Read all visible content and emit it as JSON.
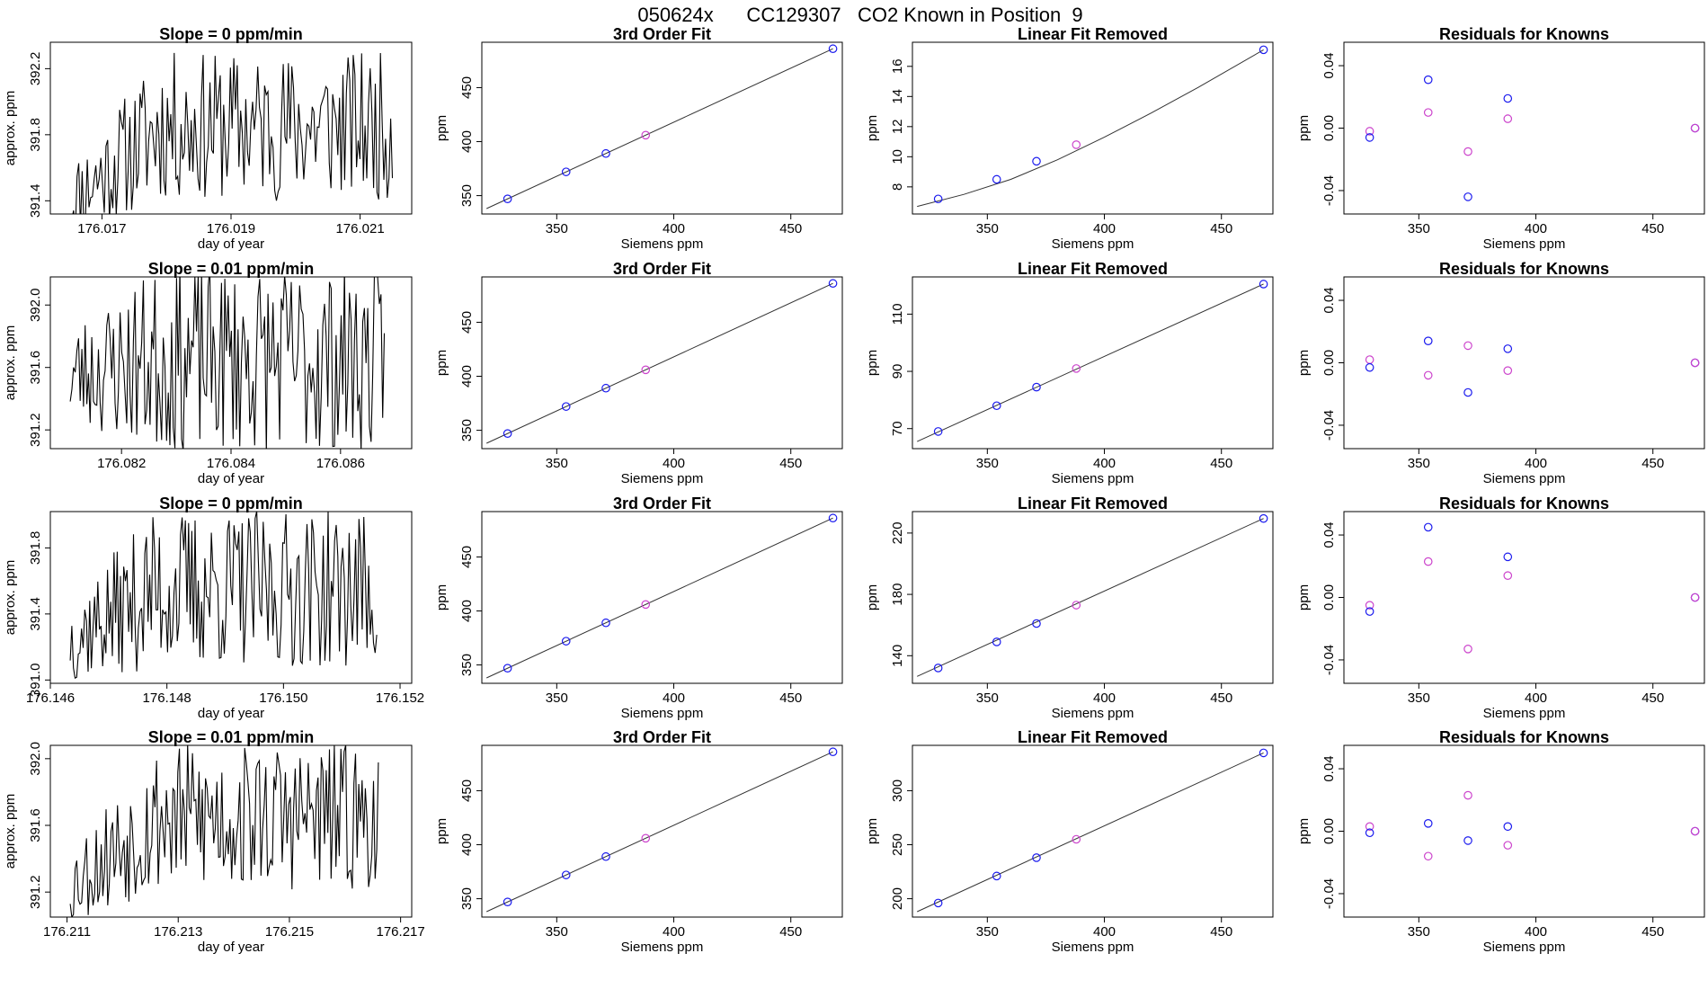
{
  "page_title": "050624x      CC129307   CO2 Known in Position  9",
  "colors": {
    "axis": "#000000",
    "trace": "#000000",
    "point_blue": "#1a1aee",
    "point_magenta": "#cc44cc",
    "fit_line": "#333333"
  },
  "chart_data": [
    {
      "row": 1,
      "col": 1,
      "type": "line",
      "title": "Slope =  0  ppm/min",
      "xlabel": "day of year",
      "ylabel": "approx. ppm",
      "xlim": [
        176.0162,
        176.0218
      ],
      "ylim": [
        391.32,
        392.36
      ],
      "xticks": [
        176.017,
        176.019,
        176.021
      ],
      "xtick_labels": [
        "176.017",
        "176.019",
        "176.021"
      ],
      "yticks": [
        391.4,
        391.8,
        392.2
      ],
      "ytick_labels": [
        "391.4",
        "391.8",
        "392.2"
      ],
      "seed": 11,
      "noise_center": 391.85,
      "noise_spread": 0.45,
      "ramp": 0.45,
      "x_end": 176.0215
    },
    {
      "row": 1,
      "col": 2,
      "type": "scatter",
      "title": "3rd Order Fit",
      "xlabel": "Siemens ppm",
      "ylabel": "ppm",
      "xlim": [
        318,
        472
      ],
      "ylim": [
        333,
        492
      ],
      "xticks": [
        350,
        400,
        450
      ],
      "yticks": [
        350,
        400,
        450
      ],
      "fit_line": [
        [
          320,
          338
        ],
        [
          468,
          486
        ]
      ],
      "points": [
        {
          "x": 329,
          "y": 347,
          "c": "blue"
        },
        {
          "x": 354,
          "y": 372,
          "c": "blue"
        },
        {
          "x": 371,
          "y": 389,
          "c": "blue"
        },
        {
          "x": 388,
          "y": 406,
          "c": "magenta"
        },
        {
          "x": 468,
          "y": 486,
          "c": "blue"
        }
      ]
    },
    {
      "row": 1,
      "col": 3,
      "type": "scatter",
      "title": "Linear Fit Removed",
      "xlabel": "Siemens ppm",
      "ylabel": "ppm",
      "xlim": [
        318,
        472
      ],
      "ylim": [
        6.2,
        17.6
      ],
      "xticks": [
        350,
        400,
        450
      ],
      "yticks": [
        8,
        10,
        12,
        14,
        16
      ],
      "fit_curve": [
        [
          320,
          6.7
        ],
        [
          340,
          7.5
        ],
        [
          360,
          8.5
        ],
        [
          380,
          9.8
        ],
        [
          400,
          11.3
        ],
        [
          420,
          12.9
        ],
        [
          440,
          14.6
        ],
        [
          468,
          17.1
        ]
      ],
      "points": [
        {
          "x": 329,
          "y": 7.2,
          "c": "blue"
        },
        {
          "x": 354,
          "y": 8.5,
          "c": "blue"
        },
        {
          "x": 371,
          "y": 9.7,
          "c": "blue"
        },
        {
          "x": 388,
          "y": 10.8,
          "c": "magenta"
        },
        {
          "x": 468,
          "y": 17.1,
          "c": "blue"
        }
      ]
    },
    {
      "row": 1,
      "col": 4,
      "type": "scatter",
      "title": "Residuals for Knowns",
      "xlabel": "Siemens ppm",
      "ylabel": "ppm",
      "xlim": [
        318,
        472
      ],
      "ylim": [
        -0.055,
        0.055
      ],
      "xticks": [
        350,
        400,
        450
      ],
      "yticks": [
        -0.04,
        0,
        0.04
      ],
      "ytick_labels": [
        "-0.04",
        "0.00",
        "0.04"
      ],
      "points": [
        {
          "x": 329,
          "y": -0.002,
          "c": "magenta"
        },
        {
          "x": 329,
          "y": -0.006,
          "c": "blue"
        },
        {
          "x": 354,
          "y": 0.031,
          "c": "blue"
        },
        {
          "x": 354,
          "y": 0.01,
          "c": "magenta"
        },
        {
          "x": 371,
          "y": -0.015,
          "c": "magenta"
        },
        {
          "x": 371,
          "y": -0.044,
          "c": "blue"
        },
        {
          "x": 388,
          "y": 0.019,
          "c": "blue"
        },
        {
          "x": 388,
          "y": 0.006,
          "c": "magenta"
        },
        {
          "x": 468,
          "y": 0.0,
          "c": "blue"
        },
        {
          "x": 468,
          "y": 0.0,
          "c": "magenta"
        }
      ]
    },
    {
      "row": 2,
      "col": 1,
      "type": "line",
      "title": "Slope =  0.01  ppm/min",
      "xlabel": "day of year",
      "ylabel": "approx. ppm",
      "xlim": [
        176.0807,
        176.0873
      ],
      "ylim": [
        391.08,
        392.18
      ],
      "xticks": [
        176.082,
        176.084,
        176.086
      ],
      "xtick_labels": [
        "176.082",
        "176.084",
        "176.086"
      ],
      "yticks": [
        391.2,
        391.6,
        392.0
      ],
      "ytick_labels": [
        "391.2",
        "391.6",
        "392.0"
      ],
      "seed": 23,
      "noise_center": 391.65,
      "noise_spread": 0.6,
      "ramp": 0.1,
      "x_end": 176.0868
    },
    {
      "row": 2,
      "col": 2,
      "type": "scatter",
      "title": "3rd Order Fit",
      "xlabel": "Siemens ppm",
      "ylabel": "ppm",
      "xlim": [
        318,
        472
      ],
      "ylim": [
        333,
        492
      ],
      "xticks": [
        350,
        400,
        450
      ],
      "yticks": [
        350,
        400,
        450
      ],
      "fit_line": [
        [
          320,
          338
        ],
        [
          468,
          486
        ]
      ],
      "points": [
        {
          "x": 329,
          "y": 347,
          "c": "blue"
        },
        {
          "x": 354,
          "y": 372,
          "c": "blue"
        },
        {
          "x": 371,
          "y": 389,
          "c": "blue"
        },
        {
          "x": 388,
          "y": 406,
          "c": "magenta"
        },
        {
          "x": 468,
          "y": 486,
          "c": "blue"
        }
      ]
    },
    {
      "row": 2,
      "col": 3,
      "type": "scatter",
      "title": "Linear Fit Removed",
      "xlabel": "Siemens ppm",
      "ylabel": "ppm",
      "xlim": [
        318,
        472
      ],
      "ylim": [
        63,
        123
      ],
      "xticks": [
        350,
        400,
        450
      ],
      "yticks": [
        70,
        90,
        110
      ],
      "fit_line": [
        [
          320,
          65.5
        ],
        [
          468,
          120.5
        ]
      ],
      "points": [
        {
          "x": 329,
          "y": 69,
          "c": "blue"
        },
        {
          "x": 354,
          "y": 78,
          "c": "blue"
        },
        {
          "x": 371,
          "y": 84.5,
          "c": "blue"
        },
        {
          "x": 388,
          "y": 91,
          "c": "magenta"
        },
        {
          "x": 468,
          "y": 120.5,
          "c": "blue"
        }
      ]
    },
    {
      "row": 2,
      "col": 4,
      "type": "scatter",
      "title": "Residuals for Knowns",
      "xlabel": "Siemens ppm",
      "ylabel": "ppm",
      "xlim": [
        318,
        472
      ],
      "ylim": [
        -0.055,
        0.055
      ],
      "xticks": [
        350,
        400,
        450
      ],
      "yticks": [
        -0.04,
        0,
        0.04
      ],
      "ytick_labels": [
        "-0.04",
        "0.00",
        "0.04"
      ],
      "points": [
        {
          "x": 329,
          "y": 0.002,
          "c": "magenta"
        },
        {
          "x": 329,
          "y": -0.003,
          "c": "blue"
        },
        {
          "x": 354,
          "y": 0.014,
          "c": "blue"
        },
        {
          "x": 354,
          "y": -0.008,
          "c": "magenta"
        },
        {
          "x": 371,
          "y": 0.011,
          "c": "magenta"
        },
        {
          "x": 371,
          "y": -0.019,
          "c": "blue"
        },
        {
          "x": 388,
          "y": 0.009,
          "c": "blue"
        },
        {
          "x": 388,
          "y": -0.005,
          "c": "magenta"
        },
        {
          "x": 468,
          "y": 0.0,
          "c": "blue"
        },
        {
          "x": 468,
          "y": 0.0,
          "c": "magenta"
        }
      ]
    },
    {
      "row": 3,
      "col": 1,
      "type": "line",
      "title": "Slope =  0  ppm/min",
      "xlabel": "day of year",
      "ylabel": "approx. ppm",
      "xlim": [
        176.146,
        176.1522
      ],
      "ylim": [
        390.98,
        392.02
      ],
      "xticks": [
        176.146,
        176.148,
        176.15,
        176.152
      ],
      "xtick_labels": [
        "176.146",
        "176.148",
        "176.150",
        "176.152"
      ],
      "yticks": [
        391.0,
        391.4,
        391.8
      ],
      "ytick_labels": [
        "391.0",
        "391.4",
        "391.8"
      ],
      "seed": 37,
      "noise_center": 391.55,
      "noise_spread": 0.48,
      "ramp": 0.3,
      "x_end": 176.1516
    },
    {
      "row": 3,
      "col": 2,
      "type": "scatter",
      "title": "3rd Order Fit",
      "xlabel": "Siemens ppm",
      "ylabel": "ppm",
      "xlim": [
        318,
        472
      ],
      "ylim": [
        333,
        492
      ],
      "xticks": [
        350,
        400,
        450
      ],
      "yticks": [
        350,
        400,
        450
      ],
      "fit_line": [
        [
          320,
          338
        ],
        [
          468,
          486
        ]
      ],
      "points": [
        {
          "x": 329,
          "y": 347,
          "c": "blue"
        },
        {
          "x": 354,
          "y": 372,
          "c": "blue"
        },
        {
          "x": 371,
          "y": 389,
          "c": "blue"
        },
        {
          "x": 388,
          "y": 406,
          "c": "magenta"
        },
        {
          "x": 468,
          "y": 486,
          "c": "blue"
        }
      ]
    },
    {
      "row": 3,
      "col": 3,
      "type": "scatter",
      "title": "Linear Fit Removed",
      "xlabel": "Siemens ppm",
      "ylabel": "ppm",
      "xlim": [
        318,
        472
      ],
      "ylim": [
        122,
        234
      ],
      "xticks": [
        350,
        400,
        450
      ],
      "yticks": [
        140,
        180,
        220
      ],
      "fit_line": [
        [
          320,
          126.5
        ],
        [
          468,
          229.5
        ]
      ],
      "points": [
        {
          "x": 329,
          "y": 132,
          "c": "blue"
        },
        {
          "x": 354,
          "y": 149,
          "c": "blue"
        },
        {
          "x": 371,
          "y": 161,
          "c": "blue"
        },
        {
          "x": 388,
          "y": 173,
          "c": "magenta"
        },
        {
          "x": 468,
          "y": 229.5,
          "c": "blue"
        }
      ]
    },
    {
      "row": 3,
      "col": 4,
      "type": "scatter",
      "title": "Residuals for Knowns",
      "xlabel": "Siemens ppm",
      "ylabel": "ppm",
      "xlim": [
        318,
        472
      ],
      "ylim": [
        -0.055,
        0.055
      ],
      "xticks": [
        350,
        400,
        450
      ],
      "yticks": [
        -0.04,
        0,
        0.04
      ],
      "ytick_labels": [
        "-0.04",
        "0.00",
        "0.04"
      ],
      "points": [
        {
          "x": 329,
          "y": -0.005,
          "c": "magenta"
        },
        {
          "x": 329,
          "y": -0.009,
          "c": "blue"
        },
        {
          "x": 354,
          "y": 0.045,
          "c": "blue"
        },
        {
          "x": 354,
          "y": 0.023,
          "c": "magenta"
        },
        {
          "x": 371,
          "y": -0.033,
          "c": "magenta"
        },
        {
          "x": 388,
          "y": 0.026,
          "c": "blue"
        },
        {
          "x": 388,
          "y": 0.014,
          "c": "magenta"
        },
        {
          "x": 468,
          "y": 0.0,
          "c": "blue"
        },
        {
          "x": 468,
          "y": 0.0,
          "c": "magenta"
        }
      ]
    },
    {
      "row": 4,
      "col": 1,
      "type": "line",
      "title": "Slope =  0.01  ppm/min",
      "xlabel": "day of year",
      "ylabel": "approx. ppm",
      "xlim": [
        176.2107,
        176.2172
      ],
      "ylim": [
        391.05,
        392.08
      ],
      "xticks": [
        176.211,
        176.213,
        176.215,
        176.217
      ],
      "xtick_labels": [
        "176.211",
        "176.213",
        "176.215",
        "176.217"
      ],
      "yticks": [
        391.2,
        391.6,
        392.0
      ],
      "ytick_labels": [
        "391.2",
        "391.6",
        "392.0"
      ],
      "seed": 53,
      "noise_center": 391.65,
      "noise_spread": 0.45,
      "ramp": 0.4,
      "x_end": 176.2166
    },
    {
      "row": 4,
      "col": 2,
      "type": "scatter",
      "title": "3rd Order Fit",
      "xlabel": "Siemens ppm",
      "ylabel": "ppm",
      "xlim": [
        318,
        472
      ],
      "ylim": [
        333,
        492
      ],
      "xticks": [
        350,
        400,
        450
      ],
      "yticks": [
        350,
        400,
        450
      ],
      "fit_line": [
        [
          320,
          338
        ],
        [
          468,
          486
        ]
      ],
      "points": [
        {
          "x": 329,
          "y": 347,
          "c": "blue"
        },
        {
          "x": 354,
          "y": 372,
          "c": "blue"
        },
        {
          "x": 371,
          "y": 389,
          "c": "blue"
        },
        {
          "x": 388,
          "y": 406,
          "c": "magenta"
        },
        {
          "x": 468,
          "y": 486,
          "c": "blue"
        }
      ]
    },
    {
      "row": 4,
      "col": 3,
      "type": "scatter",
      "title": "Linear Fit Removed",
      "xlabel": "Siemens ppm",
      "ylabel": "ppm",
      "xlim": [
        318,
        472
      ],
      "ylim": [
        183,
        342
      ],
      "xticks": [
        350,
        400,
        450
      ],
      "yticks": [
        200,
        250,
        300
      ],
      "fit_line": [
        [
          320,
          188
        ],
        [
          468,
          335
        ]
      ],
      "points": [
        {
          "x": 329,
          "y": 196,
          "c": "blue"
        },
        {
          "x": 354,
          "y": 221,
          "c": "blue"
        },
        {
          "x": 371,
          "y": 238,
          "c": "blue"
        },
        {
          "x": 388,
          "y": 255,
          "c": "magenta"
        },
        {
          "x": 468,
          "y": 335,
          "c": "blue"
        }
      ]
    },
    {
      "row": 4,
      "col": 4,
      "type": "scatter",
      "title": "Residuals for Knowns",
      "xlabel": "Siemens ppm",
      "ylabel": "ppm",
      "xlim": [
        318,
        472
      ],
      "ylim": [
        -0.055,
        0.055
      ],
      "xticks": [
        350,
        400,
        450
      ],
      "yticks": [
        -0.04,
        0,
        0.04
      ],
      "ytick_labels": [
        "-0.04",
        "0.00",
        "0.04"
      ],
      "points": [
        {
          "x": 329,
          "y": 0.003,
          "c": "magenta"
        },
        {
          "x": 329,
          "y": -0.001,
          "c": "blue"
        },
        {
          "x": 354,
          "y": 0.005,
          "c": "blue"
        },
        {
          "x": 354,
          "y": -0.016,
          "c": "magenta"
        },
        {
          "x": 371,
          "y": 0.023,
          "c": "magenta"
        },
        {
          "x": 371,
          "y": -0.006,
          "c": "blue"
        },
        {
          "x": 388,
          "y": 0.003,
          "c": "blue"
        },
        {
          "x": 388,
          "y": -0.009,
          "c": "magenta"
        },
        {
          "x": 468,
          "y": 0.0,
          "c": "blue"
        },
        {
          "x": 468,
          "y": 0.0,
          "c": "magenta"
        }
      ]
    }
  ]
}
